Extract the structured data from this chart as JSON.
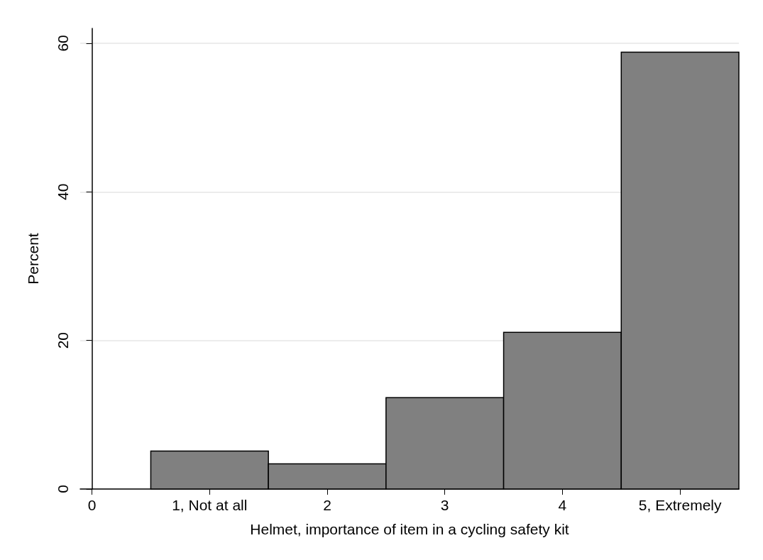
{
  "chart_data": {
    "type": "histogram",
    "xlabel": "Helmet, importance of item in a cycling safety kit",
    "ylabel": "Percent",
    "bins": [
      0.5,
      1.5,
      2.5,
      3.5,
      4.5,
      5.5
    ],
    "values": [
      5.1,
      3.4,
      12.3,
      21.1,
      58.8
    ],
    "color": "#808080",
    "xlim": [
      -0.1,
      5.5
    ],
    "xticks": [
      0,
      {
        "value": 1,
        "label": "1, Not at all"
      },
      2,
      3,
      4,
      {
        "value": 5,
        "label": "5, Extremely"
      }
    ],
    "ylim": [
      0,
      62
    ],
    "yticks": [
      0,
      20,
      40,
      60
    ],
    "grid": "y"
  }
}
